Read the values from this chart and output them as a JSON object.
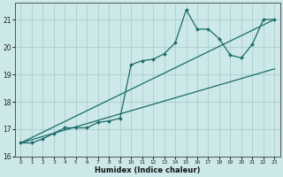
{
  "title": "",
  "xlabel": "Humidex (Indice chaleur)",
  "ylabel": "",
  "background_color": "#cde8e8",
  "grid_color": "#aacece",
  "line_color": "#1a6b6b",
  "xlim": [
    -0.5,
    23.5
  ],
  "ylim": [
    16.0,
    21.6
  ],
  "yticks": [
    16,
    17,
    18,
    19,
    20,
    21
  ],
  "xtick_labels": [
    "0",
    "1",
    "2",
    "3",
    "4",
    "5",
    "6",
    "7",
    "8",
    "9",
    "10",
    "11",
    "12",
    "13",
    "14",
    "15",
    "16",
    "17",
    "18",
    "19",
    "20",
    "21",
    "22",
    "23"
  ],
  "series1_x": [
    0,
    1,
    2,
    3,
    4,
    5,
    6,
    7,
    8,
    9,
    10,
    11,
    12,
    13,
    14,
    15,
    16,
    17,
    18,
    19,
    20,
    21,
    22,
    23
  ],
  "series1_y": [
    16.5,
    16.5,
    16.65,
    16.85,
    17.05,
    17.05,
    17.05,
    17.25,
    17.3,
    17.4,
    19.35,
    19.5,
    19.55,
    19.75,
    20.15,
    21.35,
    20.65,
    20.65,
    20.3,
    19.7,
    19.6,
    20.1,
    21.0,
    21.0
  ],
  "series2_x": [
    0,
    23
  ],
  "series2_y": [
    16.5,
    21.0
  ],
  "series3_x": [
    0,
    23
  ],
  "series3_y": [
    16.5,
    19.2
  ]
}
